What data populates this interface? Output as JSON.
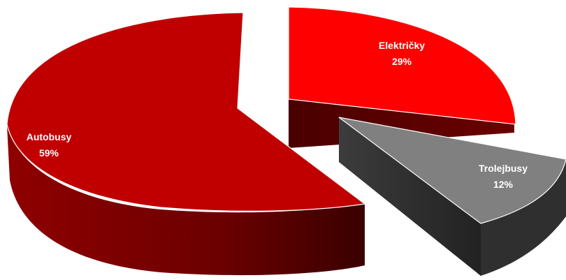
{
  "chart_data": {
    "type": "pie",
    "title": "",
    "slices": [
      {
        "label": "Autobusy",
        "value": 59,
        "value_label": "59%",
        "color": "#c00000",
        "side_color": "#7a0000"
      },
      {
        "label": "Električky",
        "value": 29,
        "value_label": "29%",
        "color": "#ff0000",
        "side_color": "#6e0000"
      },
      {
        "label": "Trolejbusy",
        "value": 12,
        "value_label": "12%",
        "color": "#808080",
        "side_color": "#3a3a3a"
      }
    ],
    "style": "3d-exploded",
    "legend": "none"
  }
}
